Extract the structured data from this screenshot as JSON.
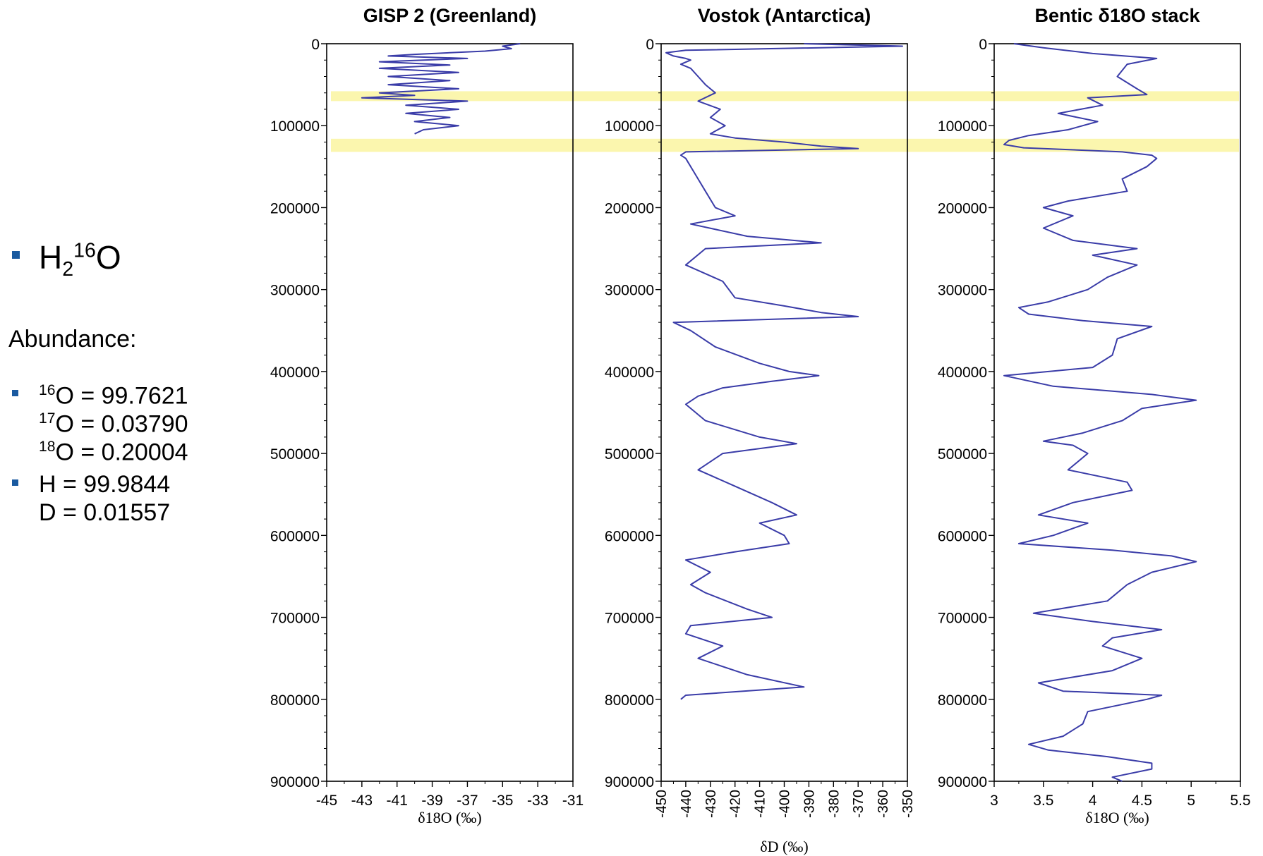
{
  "left_panel": {
    "molecule": {
      "base1": "H",
      "sub": "2",
      "sup": "16",
      "base2": "O"
    },
    "abundance_label": "Abundance:",
    "oxygen": [
      {
        "mass": "16",
        "text": "O = 99.7621"
      },
      {
        "mass": "17",
        "text": "O = 0.03790"
      },
      {
        "mass": "18",
        "text": "O = 0.20004"
      }
    ],
    "hydrogen": [
      "H = 99.9844",
      "D = 0.01557"
    ]
  },
  "colors": {
    "bullet": "#1a5aa0",
    "series": "#3a3ca8",
    "highlight": "#faf4a0",
    "axis": "#000000"
  },
  "chart_data": [
    {
      "type": "line",
      "title": "GISP 2 (Greenland)",
      "xlabel": "δ18O (‰)",
      "ylabel": "",
      "xlim": [
        -45,
        -31
      ],
      "ylim": [
        0,
        900000
      ],
      "xticks": [
        "-45",
        "-43",
        "-41",
        "-39",
        "-37",
        "-35",
        "-33",
        "-31"
      ],
      "yticks": [
        "0",
        "100000",
        "200000",
        "300000",
        "400000",
        "500000",
        "600000",
        "700000",
        "800000",
        "900000"
      ],
      "series": [
        {
          "age": [
            0,
            3000,
            6000,
            9000,
            11000,
            13000,
            15000,
            18000,
            22000,
            26000,
            30000,
            35000,
            40000,
            45000,
            50000,
            55000,
            60000,
            63000,
            66000,
            70000,
            75000,
            80000,
            85000,
            90000,
            95000,
            100000,
            105000,
            110000
          ],
          "value": [
            -34.0,
            -35.0,
            -34.5,
            -36.0,
            -38.0,
            -40.0,
            -41.5,
            -37.0,
            -42.0,
            -38.0,
            -42.0,
            -37.5,
            -41.5,
            -38.0,
            -41.5,
            -37.5,
            -42.0,
            -40.0,
            -43.0,
            -37.0,
            -40.5,
            -37.5,
            -40.5,
            -38.0,
            -40.0,
            -37.5,
            -39.5,
            -40.0
          ]
        }
      ]
    },
    {
      "type": "line",
      "title": "Vostok (Antarctica)",
      "xlabel": "δD (‰)",
      "ylabel": "",
      "xlim": [
        -450,
        -350
      ],
      "ylim": [
        0,
        900000
      ],
      "xticks": [
        "-450",
        "-440",
        "-430",
        "-420",
        "-410",
        "-400",
        "-390",
        "-380",
        "-370",
        "-360",
        "-350"
      ],
      "yticks": [
        "0",
        "100000",
        "200000",
        "300000",
        "400000",
        "500000",
        "600000",
        "700000",
        "800000",
        "900000"
      ],
      "series": [
        {
          "age": [
            0,
            3000,
            8000,
            11000,
            15000,
            18000,
            20000,
            25000,
            30000,
            40000,
            50000,
            60000,
            70000,
            80000,
            90000,
            100000,
            110000,
            115000,
            120000,
            125000,
            128000,
            132000,
            136000,
            140000,
            160000,
            180000,
            200000,
            210000,
            220000,
            235000,
            243000,
            250000,
            270000,
            290000,
            310000,
            320000,
            328000,
            333000,
            340000,
            350000,
            370000,
            390000,
            400000,
            405000,
            412000,
            420000,
            430000,
            440000,
            460000,
            480000,
            488000,
            500000,
            520000,
            540000,
            560000,
            575000,
            585000,
            600000,
            610000,
            620000,
            630000,
            645000,
            660000,
            670000,
            690000,
            700000,
            710000,
            720000,
            735000,
            750000,
            770000,
            785000,
            795000,
            800000
          ],
          "value": [
            -392,
            -352,
            -440,
            -448,
            -445,
            -440,
            -438,
            -442,
            -438,
            -435,
            -432,
            -428,
            -435,
            -426,
            -430,
            -424,
            -430,
            -420,
            -400,
            -385,
            -370,
            -440,
            -442,
            -440,
            -436,
            -432,
            -428,
            -420,
            -438,
            -415,
            -385,
            -432,
            -440,
            -425,
            -420,
            -400,
            -385,
            -370,
            -445,
            -438,
            -428,
            -410,
            -398,
            -386,
            -405,
            -425,
            -435,
            -440,
            -432,
            -410,
            -395,
            -425,
            -435,
            -420,
            -405,
            -395,
            -410,
            -400,
            -398,
            -420,
            -440,
            -430,
            -438,
            -432,
            -415,
            -405,
            -438,
            -440,
            -425,
            -435,
            -415,
            -392,
            -440,
            -442
          ]
        }
      ]
    },
    {
      "type": "line",
      "title": "Bentic δ18O stack",
      "xlabel": "δ18O (‰)",
      "ylabel": "",
      "xlim": [
        3,
        5.5
      ],
      "ylim": [
        0,
        900000
      ],
      "xticks": [
        "3",
        "3.5",
        "4",
        "4.5",
        "5",
        "5.5"
      ],
      "yticks": [
        "0",
        "100000",
        "200000",
        "300000",
        "400000",
        "500000",
        "600000",
        "700000",
        "800000",
        "900000"
      ],
      "series": [
        {
          "age": [
            0,
            5000,
            12000,
            18000,
            25000,
            40000,
            55000,
            62000,
            66000,
            75000,
            85000,
            95000,
            105000,
            112000,
            118000,
            123000,
            127000,
            132000,
            136000,
            140000,
            150000,
            165000,
            180000,
            192000,
            200000,
            210000,
            225000,
            240000,
            250000,
            258000,
            270000,
            285000,
            300000,
            315000,
            322000,
            330000,
            338000,
            345000,
            360000,
            380000,
            395000,
            405000,
            418000,
            428000,
            435000,
            445000,
            460000,
            475000,
            485000,
            490000,
            500000,
            520000,
            535000,
            545000,
            560000,
            575000,
            585000,
            600000,
            610000,
            618000,
            625000,
            632000,
            645000,
            660000,
            680000,
            695000,
            705000,
            715000,
            725000,
            735000,
            750000,
            765000,
            780000,
            790000,
            795000,
            800000,
            815000,
            830000,
            845000,
            855000,
            862000,
            870000,
            878000,
            885000,
            895000,
            900000
          ],
          "value": [
            3.2,
            3.5,
            4.0,
            4.65,
            4.35,
            4.25,
            4.45,
            4.55,
            3.95,
            4.1,
            3.65,
            4.05,
            3.75,
            3.35,
            3.15,
            3.1,
            3.3,
            4.3,
            4.6,
            4.65,
            4.55,
            4.3,
            4.35,
            3.75,
            3.5,
            3.8,
            3.5,
            3.8,
            4.45,
            4.0,
            4.45,
            4.15,
            3.95,
            3.55,
            3.25,
            3.35,
            3.9,
            4.6,
            4.25,
            4.2,
            4.0,
            3.1,
            3.6,
            4.6,
            5.05,
            4.5,
            4.3,
            3.9,
            3.5,
            3.8,
            3.95,
            3.75,
            4.35,
            4.4,
            3.8,
            3.45,
            3.95,
            3.6,
            3.25,
            4.2,
            4.8,
            5.05,
            4.6,
            4.35,
            4.15,
            3.4,
            4.0,
            4.7,
            4.2,
            4.1,
            4.5,
            4.2,
            3.45,
            3.7,
            4.7,
            4.55,
            3.95,
            3.9,
            3.7,
            3.35,
            3.55,
            4.15,
            4.6,
            4.6,
            4.2,
            4.3
          ]
        }
      ]
    }
  ],
  "highlight_bands": [
    {
      "age_from": 58000,
      "age_to": 70000
    },
    {
      "age_from": 116000,
      "age_to": 132000
    }
  ]
}
